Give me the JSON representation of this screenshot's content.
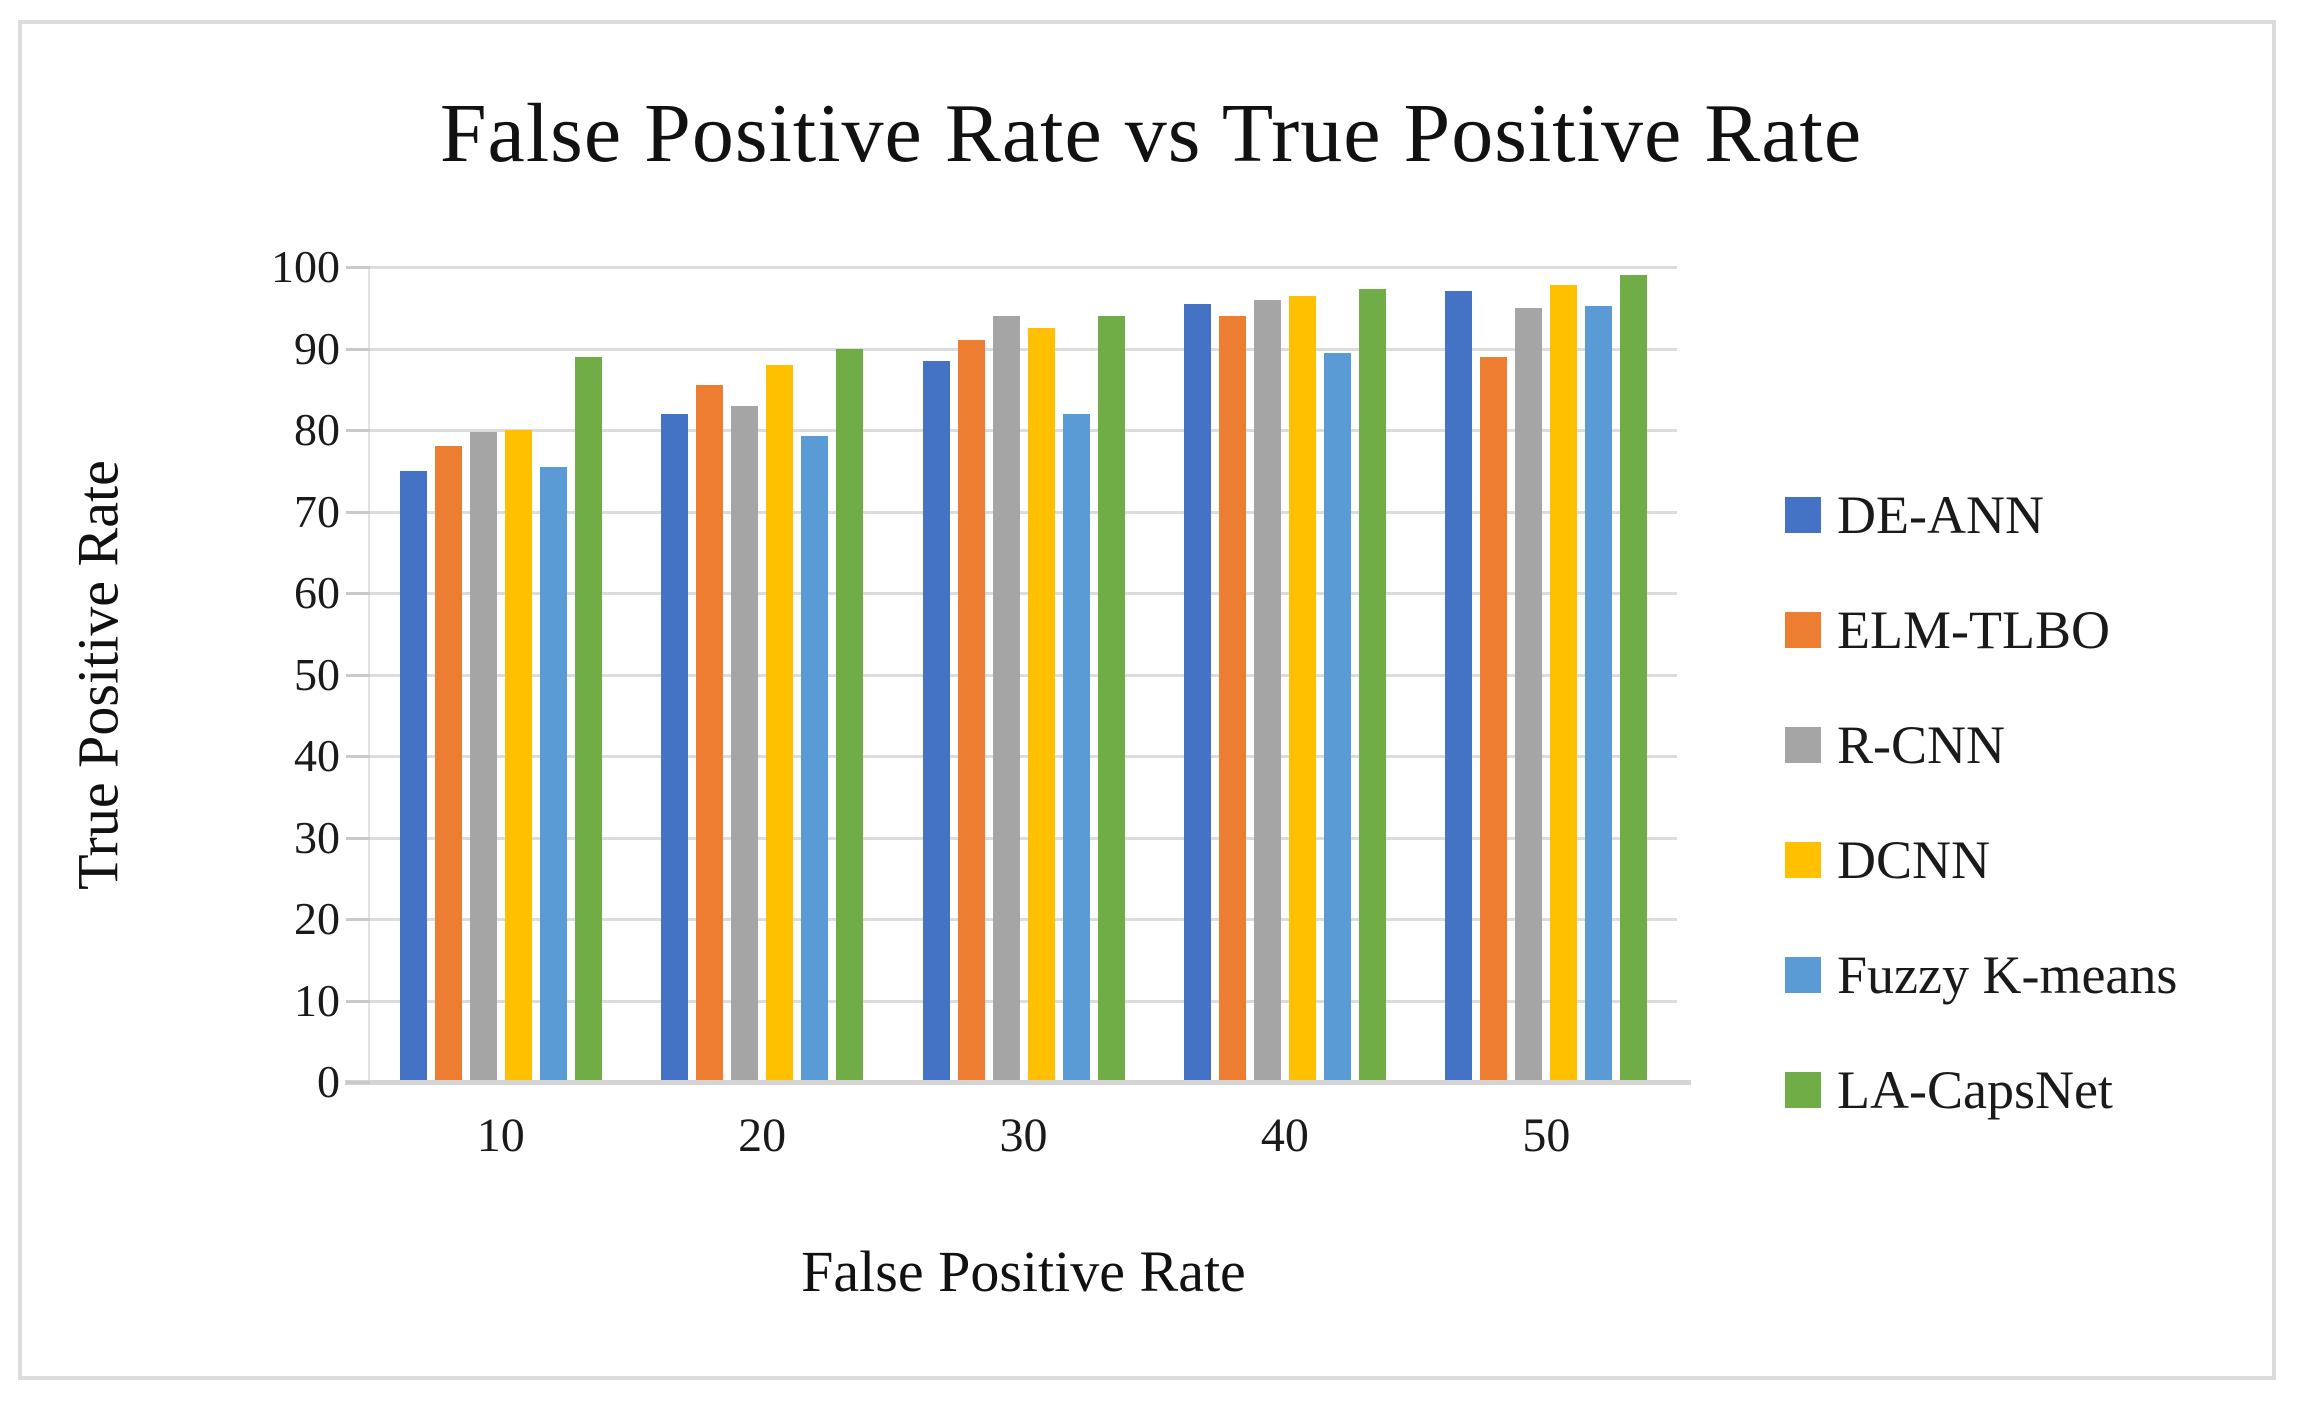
{
  "chart": {
    "title": "False Positive Rate vs True Positive Rate",
    "x_axis_title": "False Positive Rate",
    "y_axis_title": "True Positive Rate"
  },
  "chart_data": {
    "type": "bar",
    "title": "False Positive Rate vs True Positive Rate",
    "xlabel": "False Positive Rate",
    "ylabel": "True Positive Rate",
    "categories": [
      "10",
      "20",
      "30",
      "40",
      "50"
    ],
    "series": [
      {
        "name": "DE-ANN",
        "color": "#4472C4",
        "values": [
          75,
          82,
          88.5,
          95.5,
          97
        ]
      },
      {
        "name": "ELM-TLBO",
        "color": "#ED7D31",
        "values": [
          78,
          85.5,
          91,
          94,
          89
        ]
      },
      {
        "name": "R-CNN",
        "color": "#A5A5A5",
        "values": [
          79.8,
          83,
          94,
          96,
          95
        ]
      },
      {
        "name": "DCNN",
        "color": "#FFC000",
        "values": [
          80,
          88,
          92.5,
          96.5,
          97.8
        ]
      },
      {
        "name": "Fuzzy K-means",
        "color": "#5B9BD5",
        "values": [
          75.5,
          79.3,
          82,
          89.5,
          95.2
        ]
      },
      {
        "name": "LA-CapsNet",
        "color": "#70AD47",
        "values": [
          89,
          90,
          94,
          97.3,
          99
        ]
      }
    ],
    "ylim": [
      0,
      100
    ],
    "y_ticks": [
      0,
      10,
      20,
      30,
      40,
      50,
      60,
      70,
      80,
      90,
      100
    ],
    "grid": true,
    "legend_position": "right",
    "colors": {
      "gridline": "#dcdcdc",
      "axis_line": "#d4d4d4",
      "tick": "#c9c9c9",
      "text": "#1a1a1a",
      "frame_border": "#dbdbdb",
      "background": "#ffffff"
    }
  }
}
